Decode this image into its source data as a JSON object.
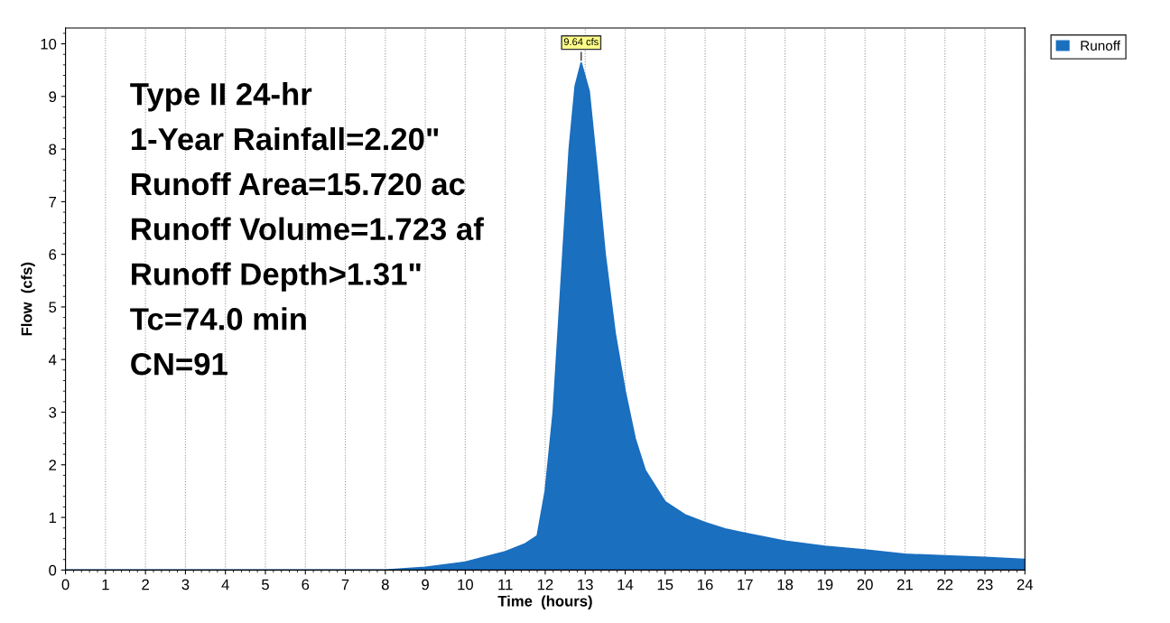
{
  "chart_data": {
    "type": "area",
    "xlabel": "Time  (hours)",
    "ylabel": "Flow  (cfs)",
    "x": [
      0,
      1,
      2,
      3,
      4,
      5,
      6,
      7,
      8,
      9,
      10,
      11,
      11.5,
      11.8,
      12,
      12.2,
      12.4,
      12.6,
      12.75,
      12.9,
      13.1,
      13.3,
      13.5,
      13.75,
      14,
      14.25,
      14.5,
      15,
      15.5,
      16,
      16.5,
      17,
      18,
      19,
      20,
      21,
      22,
      23,
      24
    ],
    "series": [
      {
        "name": "Runoff",
        "color": "#1a6fbf",
        "values": [
          0,
          0,
          0,
          0,
          0,
          0,
          0,
          0,
          0,
          0.05,
          0.15,
          0.35,
          0.5,
          0.65,
          1.5,
          3,
          5.5,
          8,
          9.2,
          9.64,
          9.1,
          7.6,
          6,
          4.5,
          3.4,
          2.5,
          1.9,
          1.3,
          1.05,
          0.9,
          0.78,
          0.7,
          0.55,
          0.45,
          0.38,
          0.3,
          0.27,
          0.24,
          0.2
        ]
      }
    ],
    "xlim": [
      0,
      24
    ],
    "ylim": [
      0,
      10.3
    ],
    "xticks": [
      0,
      1,
      2,
      3,
      4,
      5,
      6,
      7,
      8,
      9,
      10,
      11,
      12,
      13,
      14,
      15,
      16,
      17,
      18,
      19,
      20,
      21,
      22,
      23,
      24
    ],
    "yticks": [
      0,
      1,
      2,
      3,
      4,
      5,
      6,
      7,
      8,
      9,
      10
    ],
    "grid": "x",
    "legend": "top right",
    "annotations": [
      "Type II 24-hr",
      "1-Year Rainfall=2.20\"",
      "Runoff Area=15.720 ac",
      "Runoff Volume=1.723 af",
      "Runoff Depth>1.31\"",
      "Tc=74.0 min",
      "CN=91",
      {
        "text": "9.64 cfs",
        "x": 12.9,
        "y": 9.64
      }
    ]
  }
}
